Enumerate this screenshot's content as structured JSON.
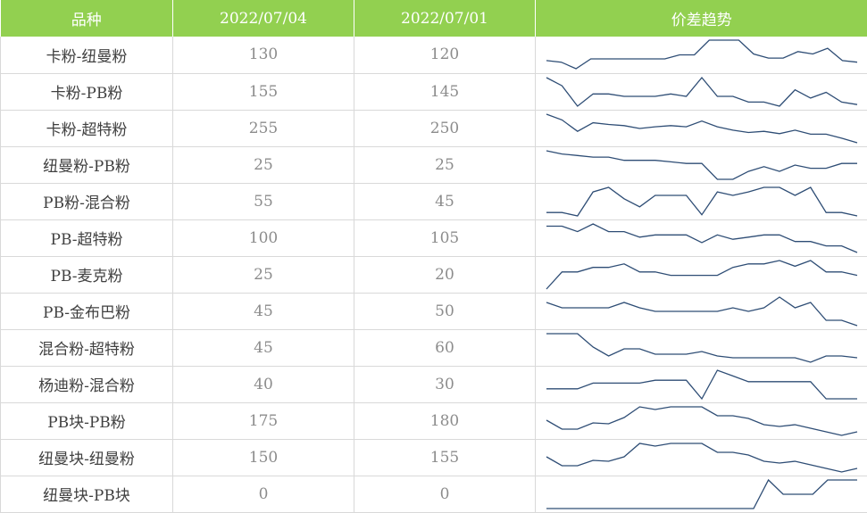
{
  "header": {
    "col_variety": "品种",
    "col_date1": "2022/07/04",
    "col_date2": "2022/07/01",
    "col_trend": "价差趋势"
  },
  "colors": {
    "header_bg": "#92d050",
    "header_text": "#ffffff",
    "sparkline": "#2e4d75",
    "grid": "#d9d9d9"
  },
  "chart_data": {
    "type": "table",
    "columns": [
      "品种",
      "2022/07/04",
      "2022/07/01",
      "价差趋势"
    ],
    "rows": [
      {
        "name": "卡粉-纽曼粉",
        "v1": "130",
        "v2": "120",
        "trend": [
          95,
          93,
          85,
          97,
          97,
          97,
          97,
          97,
          97,
          102,
          102,
          120,
          120,
          120,
          103,
          98,
          98,
          106,
          103,
          110,
          95,
          93
        ]
      },
      {
        "name": "卡粉-PB粉",
        "v1": "155",
        "v2": "145",
        "trend": [
          160,
          150,
          125,
          140,
          140,
          137,
          137,
          137,
          140,
          137,
          160,
          137,
          137,
          130,
          130,
          125,
          145,
          135,
          142,
          130,
          127
        ]
      },
      {
        "name": "卡粉-超特粉",
        "v1": "255",
        "v2": "250",
        "trend": [
          290,
          280,
          260,
          275,
          272,
          270,
          265,
          268,
          270,
          268,
          278,
          268,
          262,
          258,
          260,
          256,
          262,
          255,
          255,
          248,
          240
        ]
      },
      {
        "name": "纽曼粉-PB粉",
        "v1": "25",
        "v2": "25",
        "trend": [
          28,
          26,
          25,
          24,
          24,
          22,
          22,
          22,
          21,
          20,
          20,
          10,
          10,
          15,
          18,
          15,
          19,
          17,
          17,
          20,
          20
        ]
      },
      {
        "name": "PB粉-混合粉",
        "v1": "55",
        "v2": "45",
        "trend": [
          40,
          40,
          37,
          58,
          62,
          52,
          45,
          55,
          55,
          55,
          38,
          58,
          55,
          58,
          62,
          62,
          55,
          62,
          40,
          40,
          37
        ]
      },
      {
        "name": "PB-超特粉",
        "v1": "100",
        "v2": "105",
        "trend": [
          120,
          120,
          115,
          122,
          115,
          115,
          110,
          112,
          112,
          112,
          105,
          112,
          108,
          110,
          112,
          112,
          106,
          106,
          102,
          102,
          96
        ]
      },
      {
        "name": "PB-麦克粉",
        "v1": "25",
        "v2": "20",
        "trend": [
          -5,
          10,
          10,
          14,
          14,
          17,
          10,
          10,
          7,
          7,
          7,
          7,
          14,
          17,
          17,
          20,
          15,
          20,
          10,
          10,
          7
        ]
      },
      {
        "name": "PB-金布巴粉",
        "v1": "45",
        "v2": "50",
        "trend": [
          55,
          52,
          52,
          52,
          52,
          55,
          52,
          50,
          50,
          50,
          50,
          50,
          52,
          50,
          52,
          58,
          52,
          55,
          45,
          45,
          42
        ]
      },
      {
        "name": "混合粉-超特粉",
        "v1": "45",
        "v2": "60",
        "trend": [
          65,
          65,
          65,
          50,
          40,
          48,
          48,
          42,
          42,
          42,
          45,
          40,
          38,
          38,
          38,
          38,
          38,
          33,
          40,
          40,
          38
        ]
      },
      {
        "name": "杨迪粉-混合粉",
        "v1": "40",
        "v2": "30",
        "trend": [
          22,
          22,
          22,
          26,
          26,
          26,
          26,
          28,
          28,
          28,
          15,
          35,
          31,
          27,
          27,
          27,
          27,
          27,
          15,
          15,
          15
        ]
      },
      {
        "name": "PB块-PB粉",
        "v1": "175",
        "v2": "180",
        "trend": [
          185,
          175,
          175,
          182,
          181,
          188,
          200,
          197,
          200,
          200,
          200,
          190,
          190,
          187,
          180,
          178,
          180,
          176,
          172,
          168,
          172
        ]
      },
      {
        "name": "纽曼块-纽曼粉",
        "v1": "150",
        "v2": "155",
        "trend": [
          155,
          145,
          145,
          151,
          150,
          155,
          170,
          167,
          170,
          170,
          170,
          160,
          160,
          157,
          150,
          148,
          150,
          146,
          142,
          138,
          142
        ]
      },
      {
        "name": "纽曼块-PB块",
        "v1": "0",
        "v2": "0",
        "trend": [
          -20,
          -20,
          -20,
          -20,
          -20,
          -20,
          -20,
          -20,
          -20,
          -20,
          -20,
          -20,
          -20,
          -20,
          -20,
          0,
          -10,
          -10,
          -10,
          0,
          0,
          0
        ]
      }
    ]
  }
}
